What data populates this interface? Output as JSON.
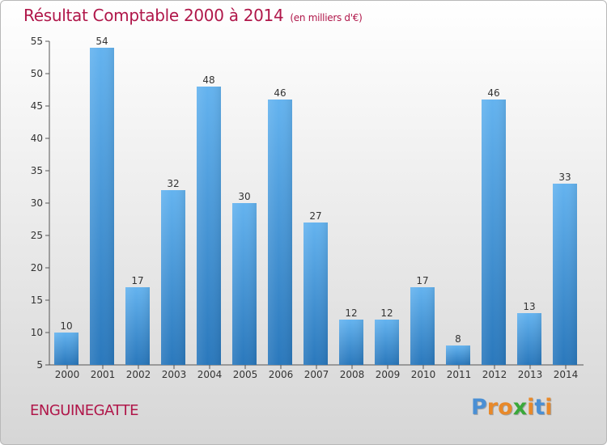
{
  "header": {
    "title": "Résultat Comptable 2000 à 2014",
    "subtitle": "(en milliers d'€)"
  },
  "footer": {
    "commune": "ENGUINEGATTE",
    "logo_text": "Proxiti",
    "logo_colors": [
      "#4a8fd4",
      "#e8892a",
      "#e8892a",
      "#3aa83a",
      "#e8892a",
      "#4a8fd4",
      "#e8892a"
    ]
  },
  "colors": {
    "title": "#b0174a",
    "bar_top": "#64b3ef",
    "bar_bottom": "#2a78bc",
    "label": "#333333"
  },
  "chart_data": {
    "type": "bar",
    "title": "Résultat Comptable 2000 à 2014",
    "subtitle": "(en milliers d'€)",
    "categories": [
      "2000",
      "2001",
      "2002",
      "2003",
      "2004",
      "2005",
      "2006",
      "2007",
      "2008",
      "2009",
      "2010",
      "2011",
      "2012",
      "2013",
      "2014"
    ],
    "values": [
      10,
      54,
      17,
      32,
      48,
      30,
      46,
      27,
      12,
      12,
      17,
      8,
      46,
      13,
      33
    ],
    "ylim": [
      5,
      55
    ],
    "yticks": [
      5,
      10,
      15,
      20,
      25,
      30,
      35,
      40,
      45,
      50,
      55
    ],
    "grid": false,
    "data_labels": true
  }
}
